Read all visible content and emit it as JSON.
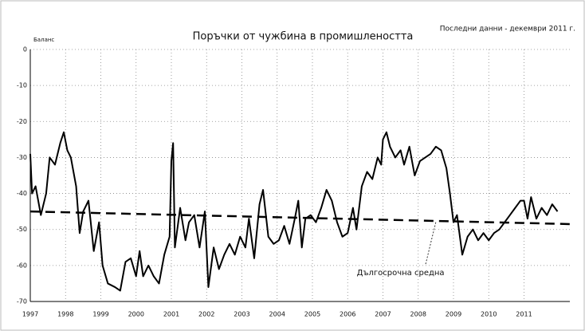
{
  "chart_data": {
    "type": "line",
    "title": "Поръчки от чужбина в промишлеността",
    "subtitle": "Последни данни - декември 2011 г.",
    "y_label": "Баланс",
    "xlim": [
      1997,
      2012.3
    ],
    "xticks": [
      1997,
      1998,
      1999,
      2000,
      2001,
      2002,
      2003,
      2004,
      2005,
      2006,
      2007,
      2008,
      2009,
      2010,
      2011
    ],
    "ylim": [
      -70,
      0
    ],
    "yticks": [
      0,
      -10,
      -20,
      -30,
      -40,
      -50,
      -60,
      -70
    ],
    "grid": true,
    "series": [
      {
        "name": null,
        "color": "#000000",
        "x": [
          1997.0,
          1997.05,
          1997.15,
          1997.3,
          1997.45,
          1997.55,
          1997.7,
          1997.85,
          1997.95,
          1998.05,
          1998.15,
          1998.3,
          1998.4,
          1998.5,
          1998.65,
          1998.8,
          1998.95,
          1999.05,
          1999.2,
          1999.4,
          1999.55,
          1999.7,
          1999.85,
          2000.0,
          2000.1,
          2000.2,
          2000.35,
          2000.5,
          2000.65,
          2000.8,
          2000.95,
          2001.0,
          2001.05,
          2001.1,
          2001.25,
          2001.4,
          2001.5,
          2001.65,
          2001.8,
          2001.95,
          2002.05,
          2002.2,
          2002.35,
          2002.5,
          2002.65,
          2002.8,
          2002.95,
          2003.1,
          2003.2,
          2003.35,
          2003.5,
          2003.6,
          2003.75,
          2003.9,
          2004.05,
          2004.2,
          2004.35,
          2004.5,
          2004.6,
          2004.7,
          2004.8,
          2004.95,
          2005.1,
          2005.25,
          2005.4,
          2005.55,
          2005.7,
          2005.85,
          2006.0,
          2006.15,
          2006.25,
          2006.4,
          2006.55,
          2006.7,
          2006.85,
          2006.95,
          2007.0,
          2007.1,
          2007.2,
          2007.35,
          2007.5,
          2007.6,
          2007.75,
          2007.9,
          2008.05,
          2008.2,
          2008.35,
          2008.5,
          2008.65,
          2008.8,
          2008.9,
          2009.0,
          2009.1,
          2009.25,
          2009.4,
          2009.55,
          2009.7,
          2009.85,
          2010.0,
          2010.15,
          2010.3,
          2010.45,
          2010.6,
          2010.75,
          2010.9,
          2011.0,
          2011.1,
          2011.2,
          2011.35,
          2011.5,
          2011.65,
          2011.8,
          2011.95
        ],
        "values": [
          -29,
          -40,
          -38,
          -46,
          -40,
          -30,
          -32,
          -26,
          -23,
          -28,
          -30,
          -38,
          -51,
          -45,
          -42,
          -56,
          -48,
          -60,
          -65,
          -66,
          -67,
          -59,
          -58,
          -63,
          -56,
          -63,
          -60,
          -63,
          -65,
          -57,
          -52,
          -31,
          -26,
          -55,
          -44,
          -53,
          -48,
          -46,
          -55,
          -45,
          -66,
          -55,
          -61,
          -57,
          -54,
          -57,
          -52,
          -55,
          -47,
          -58,
          -43,
          -39,
          -52,
          -54,
          -53,
          -49,
          -54,
          -47,
          -42,
          -55,
          -47,
          -46,
          -48,
          -44,
          -39,
          -42,
          -48,
          -52,
          -51,
          -44,
          -50,
          -38,
          -34,
          -36,
          -30,
          -32,
          -25,
          -23,
          -27,
          -30,
          -28,
          -32,
          -27,
          -35,
          -31,
          -30,
          -29,
          -27,
          -28,
          -33,
          -40,
          -48,
          -46,
          -57,
          -52,
          -50,
          -53,
          -51,
          -53,
          -51,
          -50,
          -48,
          -46,
          -44,
          -42,
          -42,
          -47,
          -41,
          -47,
          -44,
          -46,
          -43,
          -45
        ]
      },
      {
        "name": "Дългосрочна средна",
        "color": "#000000",
        "dashed": true,
        "x": [
          1997,
          2012.3
        ],
        "values": [
          -45,
          -48.5
        ]
      }
    ]
  }
}
